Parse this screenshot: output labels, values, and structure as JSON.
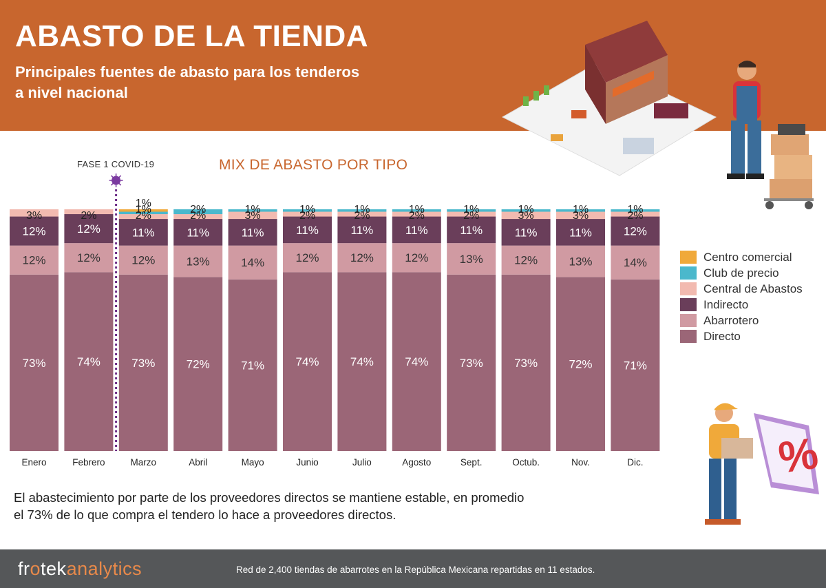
{
  "header": {
    "title": "ABASTO DE LA TIENDA",
    "subtitle_line1": "Principales fuentes de abasto para los tenderos",
    "subtitle_line2": "a nivel nacional"
  },
  "annotation": {
    "covid_label": "FASE 1 COVID-19"
  },
  "chart_data": {
    "type": "bar",
    "stacked": true,
    "percent": true,
    "title": "MIX DE ABASTO POR TIPO",
    "categories": [
      "Enero",
      "Febrero",
      "Marzo",
      "Abril",
      "Mayo",
      "Junio",
      "Julio",
      "Agosto",
      "Sept.",
      "Octub.",
      "Nov.",
      "Dic."
    ],
    "series": [
      {
        "name": "Directo",
        "color": "#9b6677",
        "values": [
          73,
          74,
          73,
          72,
          71,
          74,
          74,
          74,
          73,
          73,
          72,
          71
        ]
      },
      {
        "name": "Abarrotero",
        "color": "#d09aa2",
        "values": [
          12,
          12,
          12,
          13,
          14,
          12,
          12,
          12,
          13,
          12,
          13,
          14
        ]
      },
      {
        "name": "Indirecto",
        "color": "#6a3e5a",
        "values": [
          12,
          12,
          11,
          11,
          11,
          11,
          11,
          11,
          11,
          11,
          11,
          12
        ]
      },
      {
        "name": "Central de Abastos",
        "color": "#f2bab0",
        "values": [
          3,
          2,
          2,
          2,
          3,
          2,
          2,
          2,
          2,
          3,
          3,
          2
        ]
      },
      {
        "name": "Club de precio",
        "color": "#4bb8cc",
        "values": [
          0,
          0,
          1,
          2,
          1,
          1,
          1,
          1,
          1,
          1,
          1,
          1
        ]
      },
      {
        "name": "Centro comercial",
        "color": "#f0a93a",
        "values": [
          0,
          0,
          1,
          0,
          0,
          0,
          0,
          0,
          0,
          0,
          0,
          0
        ]
      }
    ],
    "legend_order": [
      "Centro comercial",
      "Club de precio",
      "Central de Abastos",
      "Indirecto",
      "Abarrotero",
      "Directo"
    ],
    "covid_marker_between": [
      "Febrero",
      "Marzo"
    ],
    "ylim": [
      0,
      100
    ]
  },
  "legend": {
    "items": [
      {
        "label": "Centro comercial",
        "color": "#f0a93a"
      },
      {
        "label": "Club de precio",
        "color": "#4bb8cc"
      },
      {
        "label": "Central de Abastos",
        "color": "#f2bab0"
      },
      {
        "label": "Indirecto",
        "color": "#6a3e5a"
      },
      {
        "label": "Abarrotero",
        "color": "#d09aa2"
      },
      {
        "label": "Directo",
        "color": "#9b6677"
      }
    ]
  },
  "summary": {
    "line1": "El abastecimiento por parte de los proveedores directos se mantiene estable, en promedio",
    "line2": "el 73% de lo que compra el tendero lo hace a proveedores directos."
  },
  "footer": {
    "brand_part1": "fr",
    "brand_part2": "o",
    "brand_part3": "tek",
    "brand_part4": "analytics",
    "note": "Red de 2,400 tiendas de abarrotes en la República Mexicana repartidas en 11 estados."
  }
}
